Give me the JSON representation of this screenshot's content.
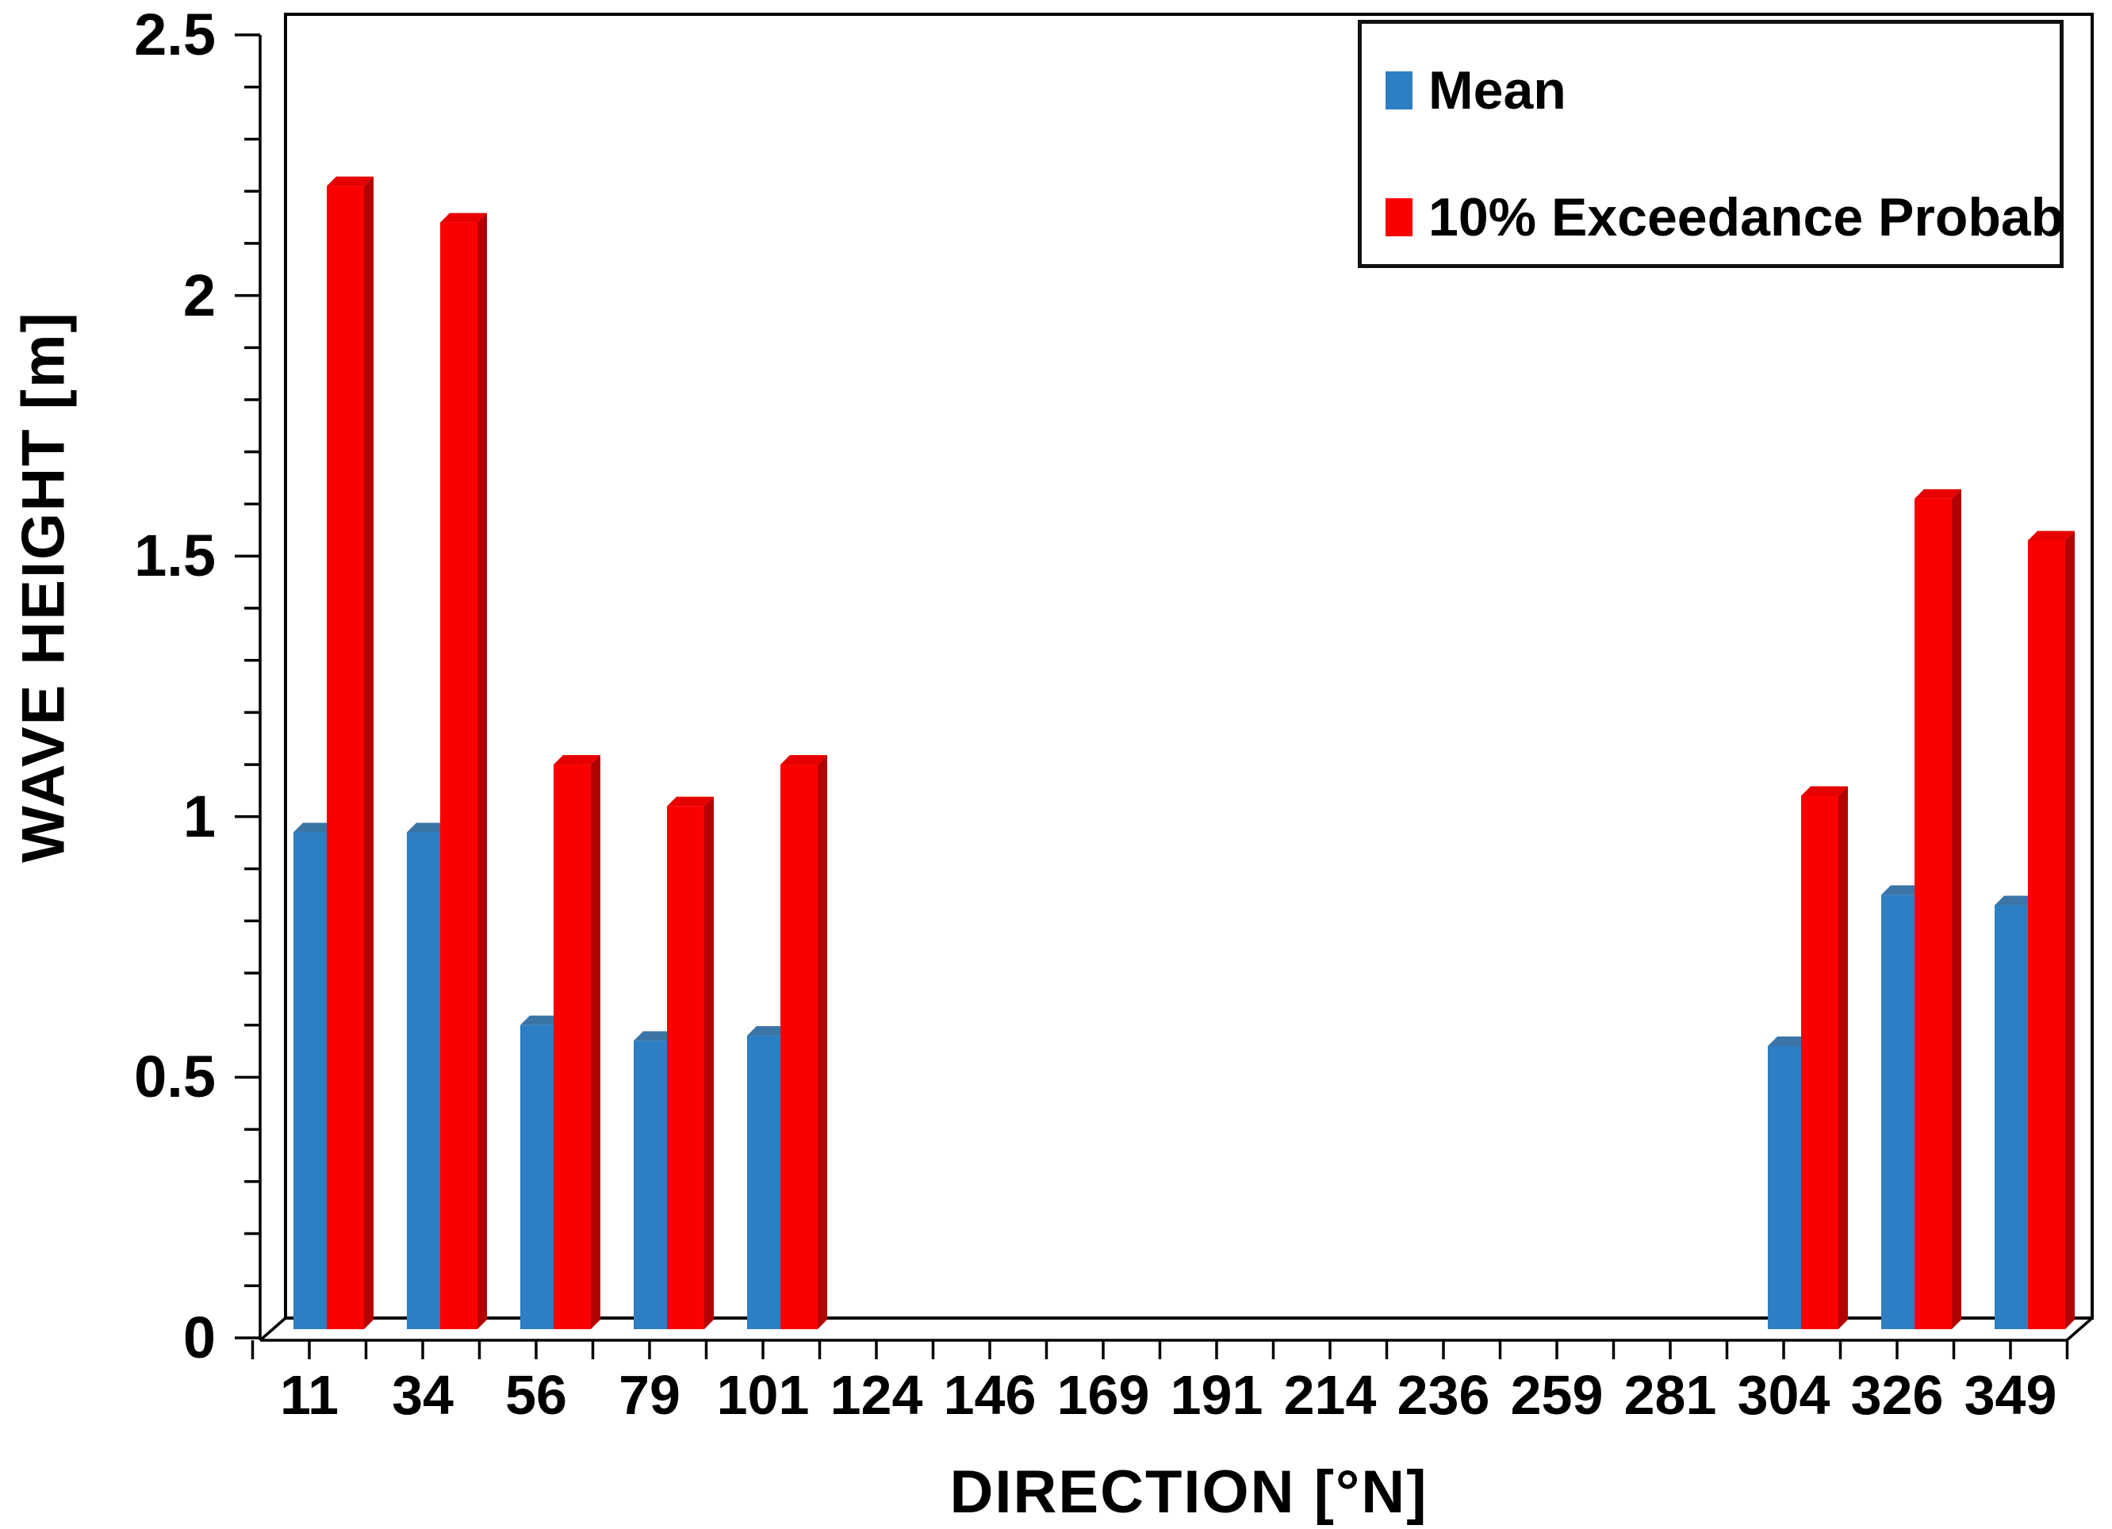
{
  "chart_data": {
    "type": "bar",
    "style": "3d-column",
    "title": "",
    "xlabel": "DIRECTION [°N]",
    "ylabel": "WAVE HEIGHT [m]",
    "categories": [
      "11",
      "34",
      "56",
      "79",
      "101",
      "124",
      "146",
      "169",
      "191",
      "214",
      "236",
      "259",
      "281",
      "304",
      "326",
      "349"
    ],
    "series": [
      {
        "name": "Mean",
        "color": "#2E7EC4",
        "side_color": "#2267AC",
        "top_color": "#3B74A6",
        "values": [
          0.97,
          0.97,
          0.6,
          0.57,
          0.58,
          0,
          0,
          0,
          0,
          0,
          0,
          0,
          0,
          0.56,
          0.85,
          0.83
        ]
      },
      {
        "name": "10% Exceedance Probab",
        "color": "#FC0000",
        "side_color": "#B30202",
        "top_color": "#E60000",
        "values": [
          2.21,
          2.14,
          1.1,
          1.02,
          1.1,
          0,
          0,
          0,
          0,
          0,
          0,
          0,
          0,
          1.04,
          1.61,
          1.53
        ]
      }
    ],
    "ylim": [
      0,
      2.5
    ],
    "y_major_step": 0.5,
    "y_minor_step": 0.1,
    "y_tick_labels": [
      "0",
      "0.5",
      "1",
      "1.5",
      "2",
      "2.5"
    ],
    "grid": false,
    "legend_position": "top-right",
    "axis_color": "#000000",
    "frame_color": "#000000",
    "background_color": "#ffffff"
  }
}
